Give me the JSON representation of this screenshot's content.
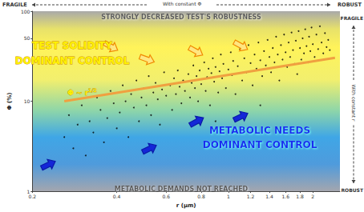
{
  "chart_data": {
    "type": "scatter",
    "x_label": "r (µm)",
    "y_label": "Φ (%)",
    "log": true,
    "grid": false,
    "xlim": [
      0.2,
      2.5
    ],
    "xticks": [
      0.2,
      0.4,
      0.6,
      0.8,
      1,
      1.2,
      1.4,
      1.6,
      1.8,
      2
    ],
    "ylim": [
      1,
      100
    ],
    "yticks": [
      1,
      10,
      50,
      100
    ],
    "x_direction": {
      "left": "FRAGILE",
      "right": "ROBUST",
      "label": "With constant Φ"
    },
    "y_direction": {
      "top": "FRAGILE",
      "bottom": "ROBUST",
      "label": "With constant r"
    },
    "regions": {
      "top": "STRONGLY DECREASED TEST'S ROBUSTNESS",
      "upper": [
        "TEST SOLIDITY",
        "DOMINANT CONTROL"
      ],
      "lower": [
        "METABOLIC NEEDS",
        "DOMINANT CONTROL"
      ],
      "bottom": "METABOLIC DEMANDS NOT REACHED"
    },
    "series": [
      {
        "type": "scatter",
        "color": "#000000",
        "marker": "circle",
        "x": [
          0.26,
          0.27,
          0.28,
          0.29,
          0.3,
          0.31,
          0.32,
          0.33,
          0.34,
          0.35,
          0.36,
          0.37,
          0.38,
          0.39,
          0.4,
          0.41,
          0.42,
          0.43,
          0.44,
          0.45,
          0.46,
          0.47,
          0.48,
          0.49,
          0.5,
          0.51,
          0.52,
          0.53,
          0.54,
          0.55,
          0.56,
          0.57,
          0.58,
          0.59,
          0.6,
          0.62,
          0.63,
          0.64,
          0.65,
          0.66,
          0.67,
          0.68,
          0.69,
          0.7,
          0.72,
          0.73,
          0.74,
          0.75,
          0.76,
          0.77,
          0.78,
          0.79,
          0.8,
          0.82,
          0.83,
          0.84,
          0.85,
          0.86,
          0.87,
          0.88,
          0.89,
          0.9,
          0.92,
          0.93,
          0.94,
          0.95,
          0.96,
          0.98,
          1,
          1.02,
          1.03,
          1.04,
          1.06,
          1.08,
          1.1,
          1.12,
          1.14,
          1.16,
          1.18,
          1.2,
          1.22,
          1.24,
          1.26,
          1.28,
          1.3,
          1.32,
          1.34,
          1.36,
          1.38,
          1.4,
          1.42,
          1.44,
          1.46,
          1.48,
          1.5,
          1.52,
          1.54,
          1.56,
          1.58,
          1.6,
          1.62,
          1.64,
          1.66,
          1.68,
          1.7,
          1.72,
          1.74,
          1.76,
          1.78,
          1.8,
          1.82,
          1.84,
          1.86,
          1.88,
          1.9,
          1.92,
          1.94,
          1.96,
          1.98,
          2,
          2.03,
          2.06,
          2.09,
          2.12,
          2.15,
          2.18,
          2.21,
          2.24,
          2.27,
          2.3,
          0.9,
          1.1,
          1.3
        ],
        "values": [
          4,
          7,
          3,
          5.5,
          9,
          2.5,
          6,
          4.5,
          11,
          8,
          3.5,
          6.5,
          13,
          9.5,
          5,
          7.5,
          15,
          10,
          4,
          12,
          8.5,
          17,
          6,
          11,
          14,
          9,
          19,
          7,
          12.5,
          16,
          10.5,
          5.5,
          13.5,
          21,
          11.5,
          15,
          8,
          18,
          12,
          22,
          14.5,
          9.5,
          17,
          13,
          20,
          11,
          16,
          25,
          14,
          19,
          10,
          22,
          15.5,
          27,
          13,
          18.5,
          23,
          9,
          20.5,
          30,
          16.5,
          24,
          12.5,
          21.5,
          33,
          18,
          26,
          14,
          22.5,
          35,
          19.5,
          28,
          12,
          24.5,
          38,
          17,
          30,
          21,
          42,
          26.5,
          15,
          33,
          23,
          45,
          28.5,
          19,
          36,
          25,
          48,
          31,
          21,
          39,
          27,
          52,
          33,
          17,
          42,
          29,
          55,
          35,
          24,
          45,
          31,
          58,
          37,
          26,
          47,
          20,
          60,
          39,
          29,
          50,
          34,
          63,
          41,
          27,
          52,
          36,
          66,
          43,
          31,
          55,
          38,
          68,
          45,
          34,
          57,
          40,
          48,
          37,
          6,
          7,
          9
        ]
      },
      {
        "type": "line",
        "color": "#f0a040",
        "line_style": "solid",
        "label": [
          "Φ ~ r",
          "1/2"
        ],
        "x": [
          0.26,
          2.4
        ],
        "values": [
          10,
          30.4
        ]
      }
    ]
  }
}
